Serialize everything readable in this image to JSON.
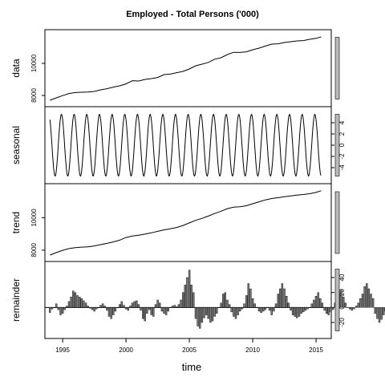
{
  "chart_data": {
    "type": "line",
    "title": "Employed - Total Persons ('000)",
    "xlabel": "time",
    "x_ticks": [
      "1995",
      "2000",
      "2005",
      "2010",
      "2015"
    ],
    "xlim": [
      1993.6,
      2016.2
    ],
    "panels": [
      {
        "name": "data",
        "ylabel": "data",
        "ticks_left": [
          "8000",
          "10000"
        ],
        "ylim": [
          7600,
          11800
        ],
        "points": [
          [
            1994.0,
            7700
          ],
          [
            1994.5,
            7850
          ],
          [
            1995.0,
            7990
          ],
          [
            1995.5,
            8120
          ],
          [
            1996.0,
            8180
          ],
          [
            1996.5,
            8200
          ],
          [
            1997.0,
            8210
          ],
          [
            1997.5,
            8250
          ],
          [
            1998.0,
            8350
          ],
          [
            1998.5,
            8420
          ],
          [
            1999.0,
            8520
          ],
          [
            1999.5,
            8600
          ],
          [
            2000.0,
            8720
          ],
          [
            2000.5,
            8920
          ],
          [
            2001.0,
            8900
          ],
          [
            2001.5,
            9000
          ],
          [
            2002.0,
            9050
          ],
          [
            2002.5,
            9120
          ],
          [
            2003.0,
            9300
          ],
          [
            2003.5,
            9330
          ],
          [
            2004.0,
            9420
          ],
          [
            2004.5,
            9500
          ],
          [
            2005.0,
            9650
          ],
          [
            2005.5,
            9850
          ],
          [
            2006.0,
            9950
          ],
          [
            2006.5,
            10060
          ],
          [
            2007.0,
            10260
          ],
          [
            2007.5,
            10350
          ],
          [
            2008.0,
            10550
          ],
          [
            2008.5,
            10690
          ],
          [
            2009.0,
            10680
          ],
          [
            2009.5,
            10720
          ],
          [
            2010.0,
            10850
          ],
          [
            2010.5,
            10950
          ],
          [
            2011.0,
            11080
          ],
          [
            2011.5,
            11200
          ],
          [
            2012.0,
            11220
          ],
          [
            2012.5,
            11300
          ],
          [
            2013.0,
            11350
          ],
          [
            2013.5,
            11400
          ],
          [
            2014.0,
            11420
          ],
          [
            2014.5,
            11500
          ],
          [
            2015.0,
            11560
          ],
          [
            2015.4,
            11650
          ]
        ]
      },
      {
        "name": "seasonal",
        "ylabel": "seasonal",
        "ticks_right": [
          "-4",
          "-2",
          "0",
          "2",
          "4"
        ],
        "ylim": [
          -6,
          6
        ],
        "periodic": {
          "start": 1994.0,
          "end": 2015.4,
          "period": 1.0,
          "amplitude": 5.5
        }
      },
      {
        "name": "trend",
        "ylabel": "trend",
        "ticks_left": [
          "8000",
          "10000"
        ],
        "ylim": [
          7600,
          11800
        ],
        "points": [
          [
            1994.0,
            7700
          ],
          [
            1994.5,
            7850
          ],
          [
            1995.0,
            7990
          ],
          [
            1995.5,
            8100
          ],
          [
            1996.0,
            8160
          ],
          [
            1996.5,
            8190
          ],
          [
            1997.0,
            8210
          ],
          [
            1997.5,
            8260
          ],
          [
            1998.0,
            8340
          ],
          [
            1998.5,
            8420
          ],
          [
            1999.0,
            8510
          ],
          [
            1999.5,
            8620
          ],
          [
            2000.0,
            8780
          ],
          [
            2000.5,
            8870
          ],
          [
            2001.0,
            8920
          ],
          [
            2001.5,
            8990
          ],
          [
            2002.0,
            9070
          ],
          [
            2002.5,
            9160
          ],
          [
            2003.0,
            9250
          ],
          [
            2003.5,
            9320
          ],
          [
            2004.0,
            9400
          ],
          [
            2004.5,
            9520
          ],
          [
            2005.0,
            9680
          ],
          [
            2005.5,
            9840
          ],
          [
            2006.0,
            9960
          ],
          [
            2006.5,
            10100
          ],
          [
            2007.0,
            10260
          ],
          [
            2007.5,
            10400
          ],
          [
            2008.0,
            10560
          ],
          [
            2008.5,
            10650
          ],
          [
            2009.0,
            10680
          ],
          [
            2009.5,
            10740
          ],
          [
            2010.0,
            10860
          ],
          [
            2010.5,
            10980
          ],
          [
            2011.0,
            11100
          ],
          [
            2011.5,
            11180
          ],
          [
            2012.0,
            11230
          ],
          [
            2012.5,
            11290
          ],
          [
            2013.0,
            11340
          ],
          [
            2013.5,
            11390
          ],
          [
            2014.0,
            11430
          ],
          [
            2014.5,
            11480
          ],
          [
            2015.0,
            11560
          ],
          [
            2015.4,
            11660
          ]
        ]
      },
      {
        "name": "remainder",
        "ylabel": "remainder",
        "ticks_right": [
          "-20",
          "0",
          "20",
          "40"
        ],
        "ylim": [
          -35,
          55
        ],
        "type": "bar",
        "x_start": 1994.0,
        "x_step": 0.1666667,
        "values": [
          -7,
          -2,
          0,
          5,
          -3,
          -10,
          -8,
          -3,
          2,
          8,
          14,
          22,
          20,
          16,
          14,
          12,
          9,
          6,
          2,
          -1,
          -3,
          -5,
          -2,
          0,
          3,
          5,
          2,
          -4,
          -12,
          -15,
          -10,
          -5,
          0,
          4,
          8,
          3,
          -2,
          -4,
          2,
          6,
          8,
          9,
          4,
          -4,
          -15,
          -18,
          -8,
          -3,
          -10,
          -12,
          4,
          10,
          6,
          -5,
          -8,
          -10,
          -5,
          0,
          2,
          3,
          1,
          4,
          10,
          20,
          30,
          40,
          50,
          30,
          20,
          -15,
          -25,
          -28,
          -20,
          -14,
          -10,
          -15,
          -20,
          -18,
          -12,
          -8,
          0,
          6,
          18,
          20,
          10,
          4,
          -6,
          -12,
          -15,
          -10,
          -5,
          -2,
          5,
          16,
          32,
          25,
          12,
          5,
          0,
          -5,
          -7,
          -5,
          -3,
          0,
          -4,
          -10,
          -5,
          5,
          18,
          25,
          32,
          25,
          15,
          6,
          -4,
          -10,
          -12,
          -14,
          -12,
          -8,
          -6,
          -4,
          -2,
          0,
          5,
          10,
          15,
          20,
          12,
          6,
          -4,
          -8,
          -10,
          -6,
          -3,
          6,
          14,
          20,
          24,
          14,
          6,
          0,
          -2,
          -4,
          -2,
          2,
          6,
          12,
          18,
          28,
          32,
          25,
          18,
          12,
          -8,
          -15,
          -20,
          -16,
          -10,
          -5,
          0,
          4,
          10,
          20,
          30,
          26,
          14,
          5,
          -5,
          -8,
          -10,
          -8,
          -6,
          -3,
          4,
          8,
          13,
          10,
          6,
          2,
          -4,
          -8,
          -12,
          -14,
          -10,
          -5,
          0,
          4,
          8,
          10,
          6,
          -3,
          -6,
          -8,
          -6,
          -2,
          8,
          13,
          12,
          4,
          -2,
          -8,
          -10,
          -14,
          -16,
          -12,
          -8,
          -5,
          0,
          5,
          12,
          20,
          16,
          6,
          -2,
          -6,
          -6,
          -3,
          6,
          14,
          22,
          19,
          10,
          0
        ]
      }
    ]
  }
}
